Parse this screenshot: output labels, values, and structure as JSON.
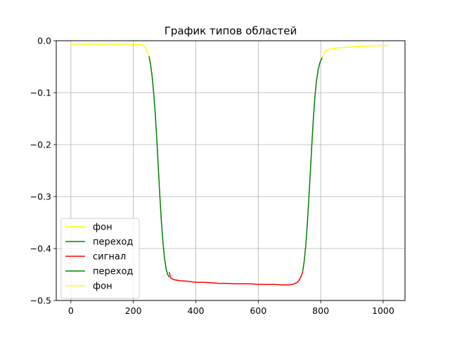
{
  "chart_data": {
    "type": "line",
    "title": "График типов областей",
    "xlabel": "",
    "ylabel": "",
    "xlim": [
      -47,
      1070
    ],
    "ylim": [
      -0.5,
      0.0
    ],
    "xticks": [
      0,
      200,
      400,
      600,
      800,
      1000
    ],
    "yticks": [
      0.0,
      -0.1,
      -0.2,
      -0.3,
      -0.4,
      -0.5
    ],
    "xtick_labels": [
      "0",
      "200",
      "400",
      "600",
      "800",
      "1000"
    ],
    "ytick_labels": [
      "0.0",
      "−0.1",
      "−0.2",
      "−0.3",
      "−0.4",
      "−0.5"
    ],
    "grid": true,
    "legend_position": "lower-left",
    "series": [
      {
        "name": "фон",
        "color": "#ffff00",
        "x": [
          0,
          25,
          50,
          75,
          100,
          125,
          150,
          175,
          200,
          215,
          225,
          235,
          243,
          250
        ],
        "y": [
          -0.007,
          -0.006,
          -0.007,
          -0.006,
          -0.007,
          -0.006,
          -0.007,
          -0.006,
          -0.007,
          -0.007,
          -0.008,
          -0.011,
          -0.018,
          -0.03
        ]
      },
      {
        "name": "переход",
        "color": "#008000",
        "x": [
          250,
          255,
          260,
          265,
          270,
          275,
          280,
          285,
          290,
          295,
          300,
          305,
          310,
          315
        ],
        "y": [
          -0.03,
          -0.045,
          -0.068,
          -0.1,
          -0.14,
          -0.19,
          -0.245,
          -0.3,
          -0.35,
          -0.39,
          -0.42,
          -0.44,
          -0.45,
          -0.455
        ]
      },
      {
        "name": "сигнал",
        "color": "#ff0000",
        "x": [
          315,
          320,
          330,
          350,
          375,
          400,
          425,
          450,
          475,
          500,
          525,
          550,
          575,
          600,
          625,
          650,
          675,
          700,
          715,
          725,
          732,
          738,
          742
        ],
        "y": [
          -0.445,
          -0.457,
          -0.46,
          -0.462,
          -0.463,
          -0.465,
          -0.465,
          -0.466,
          -0.467,
          -0.467,
          -0.468,
          -0.468,
          -0.468,
          -0.469,
          -0.469,
          -0.469,
          -0.47,
          -0.47,
          -0.468,
          -0.465,
          -0.46,
          -0.452,
          -0.445
        ]
      },
      {
        "name": "переход",
        "color": "#008000",
        "x": [
          742,
          747,
          752,
          757,
          762,
          767,
          772,
          777,
          782,
          787,
          792,
          797,
          802,
          805
        ],
        "y": [
          -0.445,
          -0.425,
          -0.395,
          -0.355,
          -0.305,
          -0.25,
          -0.195,
          -0.145,
          -0.105,
          -0.075,
          -0.055,
          -0.043,
          -0.036,
          -0.033
        ]
      },
      {
        "name": "фон",
        "color": "#ffff00",
        "x": [
          805,
          810,
          815,
          820,
          830,
          850,
          875,
          900,
          925,
          950,
          975,
          1000,
          1020
        ],
        "y": [
          -0.033,
          -0.025,
          -0.02,
          -0.018,
          -0.016,
          -0.014,
          -0.013,
          -0.012,
          -0.011,
          -0.01,
          -0.01,
          -0.009,
          -0.009
        ]
      }
    ]
  }
}
